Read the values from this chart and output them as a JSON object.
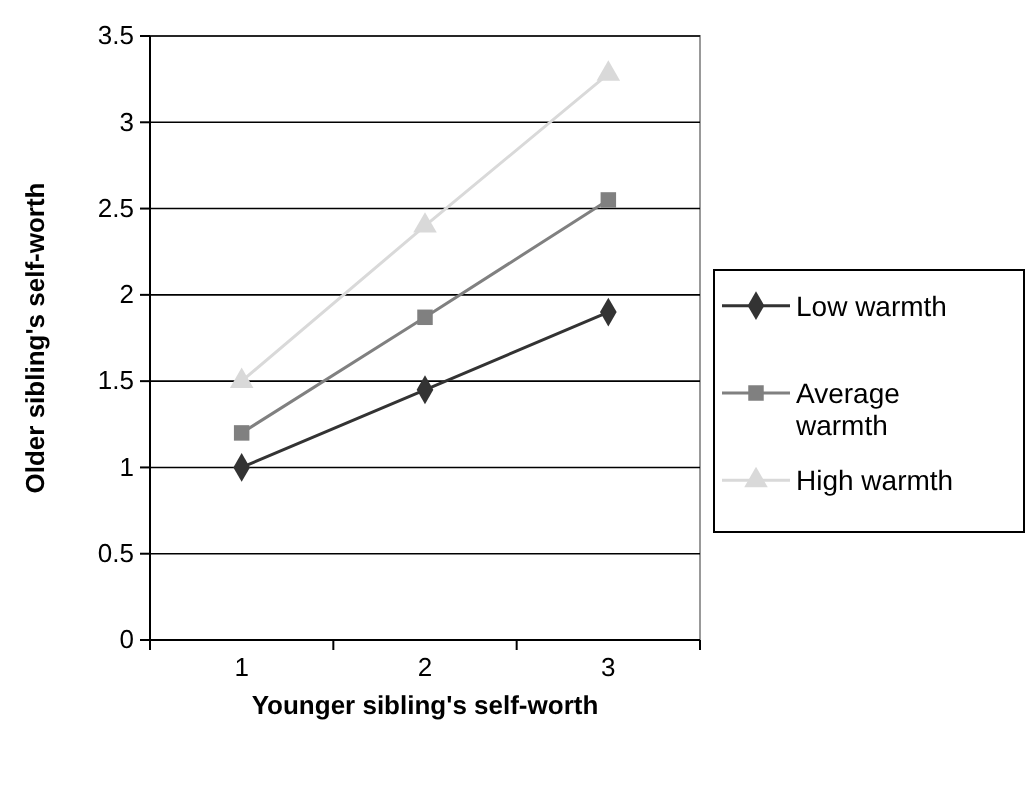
{
  "chart_data": {
    "type": "line",
    "xlabel": "Younger sibling's self-worth",
    "ylabel": "Older sibling's self-worth",
    "categories": [
      "1",
      "2",
      "3"
    ],
    "series": [
      {
        "name": "Low warmth",
        "color": "#333333",
        "marker": "diamond",
        "values": [
          1.0,
          1.45,
          1.9
        ]
      },
      {
        "name": "Average warmth",
        "color": "#808080",
        "marker": "square",
        "values": [
          1.2,
          1.87,
          2.55
        ]
      },
      {
        "name": "High warmth",
        "color": "#d9d9d9",
        "marker": "triangle",
        "values": [
          1.5,
          2.4,
          3.28
        ]
      }
    ],
    "ylim": [
      0,
      3.5
    ],
    "yticks": [
      0,
      0.5,
      1,
      1.5,
      2,
      2.5,
      3,
      3.5
    ],
    "grid": "y",
    "legend": "right"
  }
}
